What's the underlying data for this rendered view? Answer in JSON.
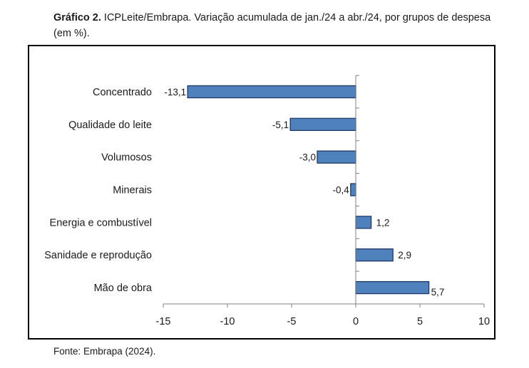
{
  "caption": {
    "label": "Gráfico 2.",
    "text": "ICPLeite/Embrapa. Variação acumulada de jan./24 a abr./24, por grupos de despesa (em %)."
  },
  "source": "Fonte: Embrapa (2024).",
  "chart_data": {
    "type": "bar",
    "orientation": "horizontal",
    "categories": [
      "Concentrado",
      "Qualidade do leite",
      "Volumosos",
      "Minerais",
      "Energia e combustível",
      "Sanidade e reprodução",
      "Mão de obra"
    ],
    "values": [
      -13.1,
      -5.1,
      -3.0,
      -0.4,
      1.2,
      2.9,
      5.7
    ],
    "value_labels": [
      "-13,1",
      "-5,1",
      "-3,0",
      "-0,4",
      "1,2",
      "2,9",
      "5,7"
    ],
    "xlim": [
      -15,
      10
    ],
    "xticks": [
      -15,
      -10,
      -5,
      0,
      5,
      10
    ],
    "xtick_labels": [
      "-15",
      "-10",
      "-5",
      "0",
      "5",
      "10"
    ],
    "title": "",
    "xlabel": "",
    "ylabel": "",
    "grid": false,
    "bar_color": "#4f81bd",
    "bar_edge_color": "#1f3864"
  }
}
